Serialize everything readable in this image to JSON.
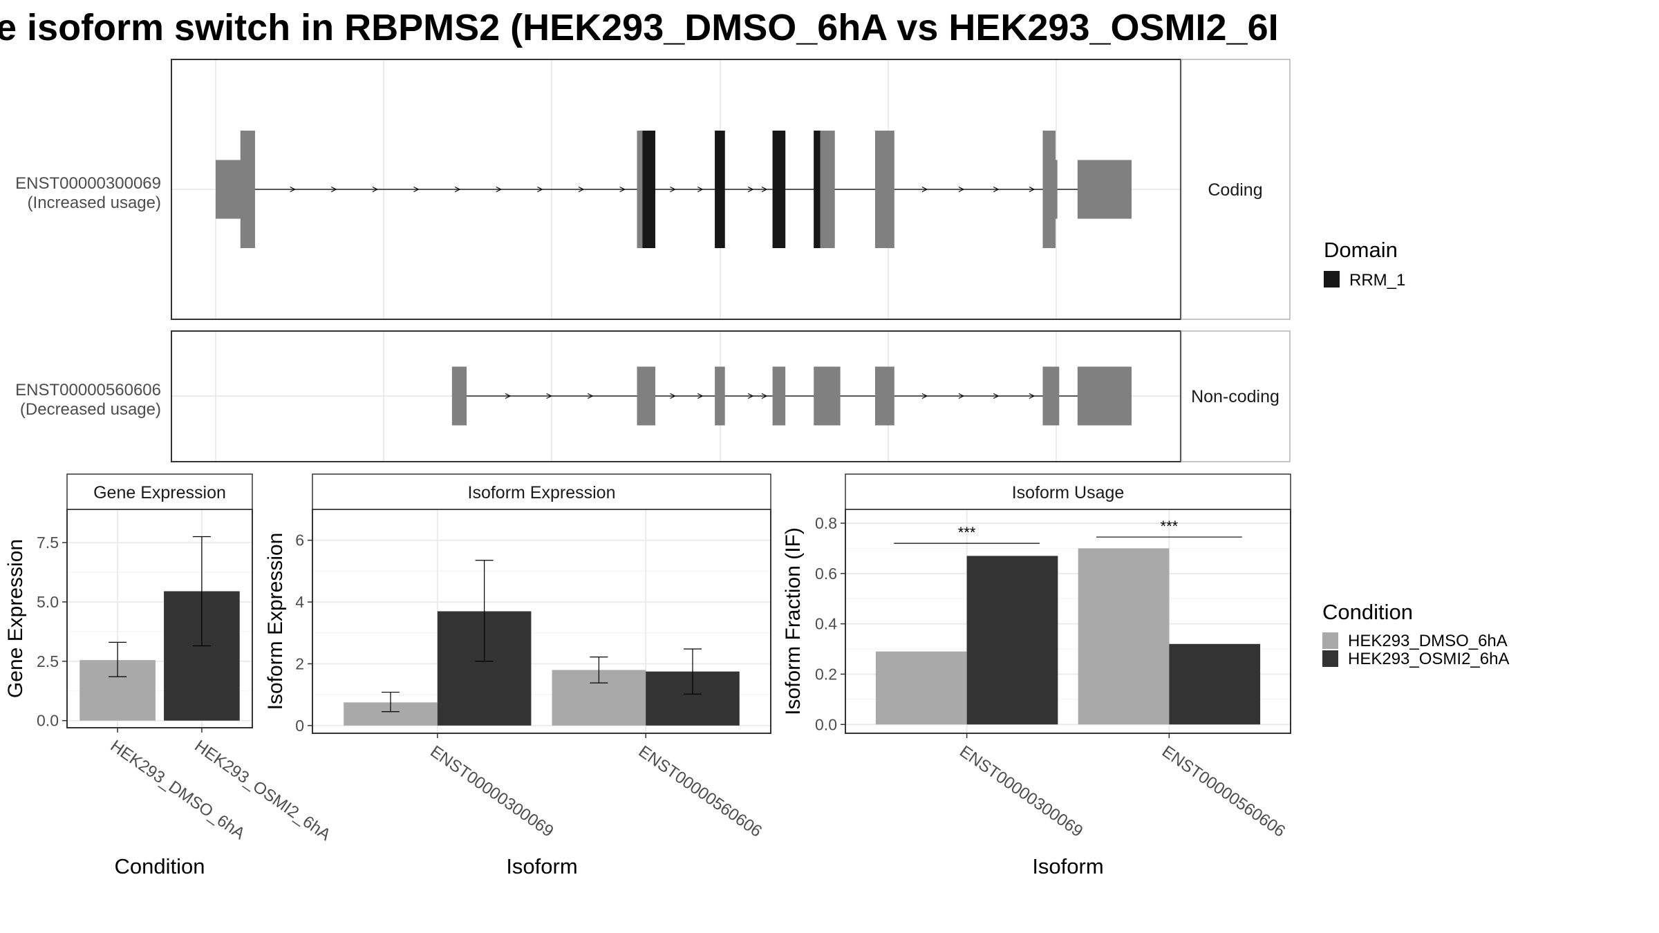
{
  "title": "e isoform switch in RBPMS2 (HEK293_DMSO_6hA vs HEK293_OSMI2_6I",
  "colors": {
    "dmso": "#a9a9a9",
    "osmi": "#333333",
    "exon": "#808080",
    "domain": "#171717",
    "grid": "#ebebeb",
    "frame": "#333333",
    "strip_border": "#b3b3b3"
  },
  "transcripts": [
    {
      "id": "ENST00000300069",
      "usage": "(Increased usage)",
      "type": "Coding",
      "coding": true,
      "exons": [
        {
          "start": 0.0,
          "end": 0.04,
          "kind": "utr"
        },
        {
          "start": 0.027,
          "end": 0.043,
          "kind": "cds"
        },
        {
          "start": 0.46,
          "end": 0.48,
          "kind": "cds",
          "domain_start": 0.466,
          "domain_end": 0.48
        },
        {
          "start": 0.545,
          "end": 0.556,
          "kind": "cds",
          "domain_start": 0.545,
          "domain_end": 0.556
        },
        {
          "start": 0.608,
          "end": 0.622,
          "kind": "cds",
          "domain_start": 0.608,
          "domain_end": 0.622
        },
        {
          "start": 0.653,
          "end": 0.676,
          "kind": "cds",
          "domain_start": 0.653,
          "domain_end": 0.66
        },
        {
          "start": 0.72,
          "end": 0.741,
          "kind": "cds"
        },
        {
          "start": 0.903,
          "end": 0.917,
          "kind": "cds"
        },
        {
          "start": 0.915,
          "end": 0.919,
          "kind": "utr"
        },
        {
          "start": 0.941,
          "end": 1.0,
          "kind": "utr"
        }
      ],
      "arrows": [
        0.085,
        0.13,
        0.175,
        0.22,
        0.265,
        0.31,
        0.355,
        0.4,
        0.445,
        0.5,
        0.53,
        0.585,
        0.6,
        0.775,
        0.815,
        0.853,
        0.892
      ]
    },
    {
      "id": "ENST00000560606",
      "usage": "(Decreased usage)",
      "type": "Non-coding",
      "coding": false,
      "exons": [
        {
          "start": 0.258,
          "end": 0.274,
          "kind": "nc"
        },
        {
          "start": 0.46,
          "end": 0.48,
          "kind": "nc"
        },
        {
          "start": 0.545,
          "end": 0.556,
          "kind": "nc"
        },
        {
          "start": 0.608,
          "end": 0.622,
          "kind": "nc"
        },
        {
          "start": 0.653,
          "end": 0.682,
          "kind": "nc"
        },
        {
          "start": 0.72,
          "end": 0.741,
          "kind": "nc"
        },
        {
          "start": 0.903,
          "end": 0.921,
          "kind": "nc"
        },
        {
          "start": 0.941,
          "end": 1.0,
          "kind": "nc"
        }
      ],
      "arrows": [
        0.32,
        0.365,
        0.41,
        0.5,
        0.53,
        0.585,
        0.6,
        0.775,
        0.815,
        0.853,
        0.892
      ]
    }
  ],
  "legends": {
    "domain": {
      "title": "Domain",
      "items": [
        "RRM_1"
      ]
    },
    "condition": {
      "title": "Condition",
      "items": [
        "HEK293_DMSO_6hA",
        "HEK293_OSMI2_6hA"
      ]
    }
  },
  "chart_data": [
    {
      "type": "bar",
      "strip": "Gene Expression",
      "xlabel": "Condition",
      "ylabel": "Gene Expression",
      "categories": [
        "HEK293_DMSO_6hA",
        "HEK293_OSMI2_6hA"
      ],
      "values": [
        2.55,
        5.45
      ],
      "errors": [
        [
          1.85,
          3.3
        ],
        [
          3.15,
          7.75
        ]
      ],
      "ylim": [
        -0.3,
        8.9
      ],
      "yticks": [
        0.0,
        2.5,
        5.0,
        7.5
      ],
      "yticklabels": [
        "0.0",
        "2.5",
        "5.0",
        "7.5"
      ]
    },
    {
      "type": "bar",
      "strip": "Isoform Expression",
      "xlabel": "Isoform",
      "ylabel": "Isoform Expression",
      "categories": [
        "ENST00000300069",
        "ENST00000560606"
      ],
      "series": [
        {
          "name": "HEK293_DMSO_6hA",
          "values": [
            0.75,
            1.8
          ],
          "errors": [
            [
              0.45,
              1.08
            ],
            [
              1.38,
              2.22
            ]
          ]
        },
        {
          "name": "HEK293_OSMI2_6hA",
          "values": [
            3.7,
            1.75
          ],
          "errors": [
            [
              2.08,
              5.35
            ],
            [
              1.02,
              2.48
            ]
          ]
        }
      ],
      "ylim": [
        -0.25,
        7.0
      ],
      "yticks": [
        0,
        2,
        4,
        6
      ],
      "yticklabels": [
        "0",
        "2",
        "4",
        "6"
      ]
    },
    {
      "type": "bar",
      "strip": "Isoform Usage",
      "xlabel": "Isoform",
      "ylabel": "Isoform Fraction (IF)",
      "categories": [
        "ENST00000300069",
        "ENST00000560606"
      ],
      "series": [
        {
          "name": "HEK293_DMSO_6hA",
          "values": [
            0.29,
            0.7
          ]
        },
        {
          "name": "HEK293_OSMI2_6hA",
          "values": [
            0.67,
            0.32
          ]
        }
      ],
      "significance": [
        {
          "category": "ENST00000300069",
          "label": "***",
          "y": 0.72
        },
        {
          "category": "ENST00000560606",
          "label": "***",
          "y": 0.745
        }
      ],
      "ylim": [
        -0.035,
        0.855
      ],
      "yticks": [
        0.0,
        0.2,
        0.4,
        0.6,
        0.8
      ],
      "yticklabels": [
        "0.0",
        "0.2",
        "0.4",
        "0.6",
        "0.8"
      ]
    }
  ]
}
